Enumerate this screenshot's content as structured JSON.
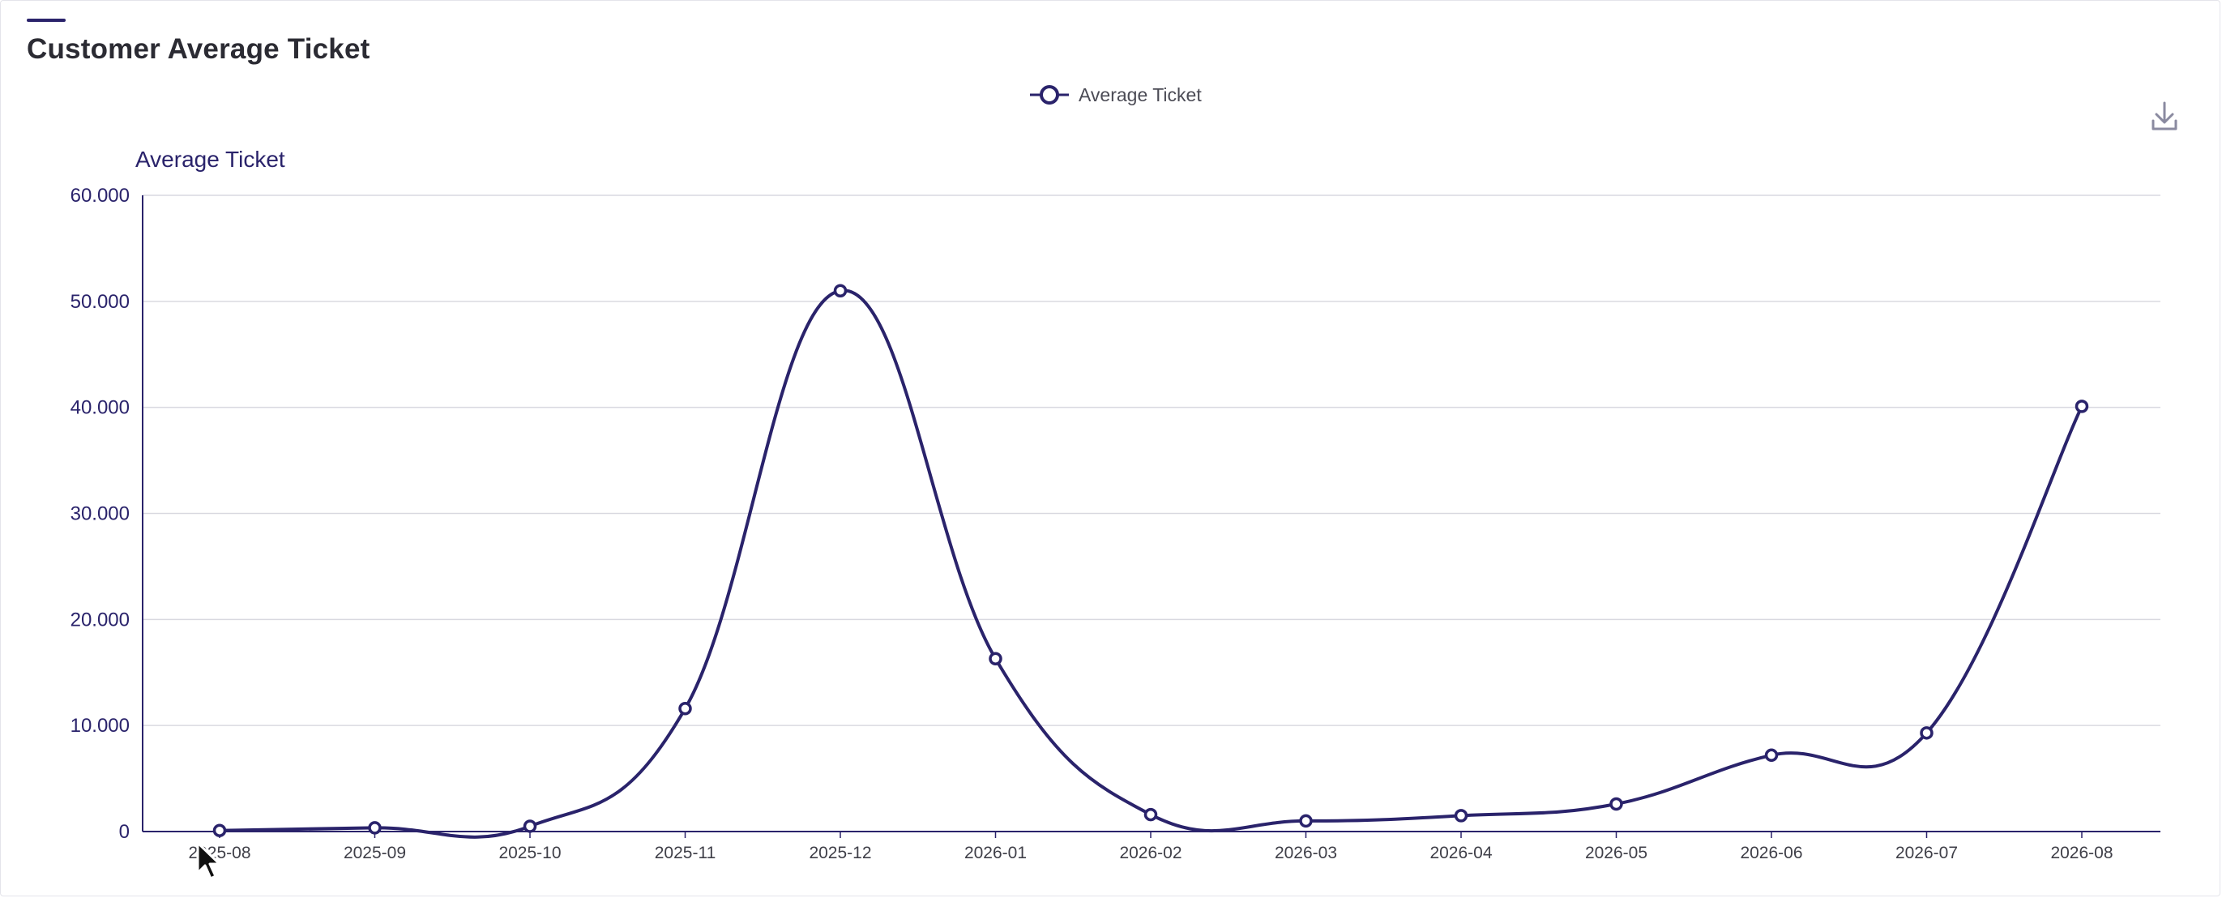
{
  "card": {
    "title": "Customer Average Ticket"
  },
  "colors": {
    "series": "#2a236b",
    "grid": "#d9d9e0",
    "axis": "#2a236b",
    "title": "#2b2b33"
  },
  "icons": {
    "download": "download-icon"
  },
  "chart_data": {
    "type": "line",
    "smooth": true,
    "categories": [
      "2025-08",
      "2025-09",
      "2025-10",
      "2025-11",
      "2025-12",
      "2026-01",
      "2026-02",
      "2026-03",
      "2026-04",
      "2026-05",
      "2026-06",
      "2026-07",
      "2026-08"
    ],
    "series": [
      {
        "name": "Average Ticket",
        "values": [
          100,
          350,
          500,
          11600,
          51000,
          16300,
          1600,
          1000,
          1500,
          2600,
          7200,
          9300,
          40100
        ]
      }
    ],
    "ylabel": "Average Ticket",
    "ylim": [
      0,
      60000
    ],
    "yticks": [
      0,
      10000,
      20000,
      30000,
      40000,
      50000,
      60000
    ],
    "ytick_labels": [
      "0",
      "10.000",
      "20.000",
      "30.000",
      "40.000",
      "50.000",
      "60.000"
    ],
    "grid": true,
    "legend": "top-center"
  }
}
